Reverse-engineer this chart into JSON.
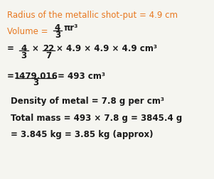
{
  "bg_color": "#f5f5f0",
  "text_color_gray": "#555555",
  "text_color_orange": "#e87820",
  "text_color_black": "#1a1a1a",
  "line1": "Radius of the metallic shot-put = 4.9 cm",
  "line2a": "Volume = ",
  "line2b": "4",
  "line2c": "3",
  "line2d": "πr³",
  "line3": "=   4  ×  22  × 4.9 × 4.9 × 4.9 cm³",
  "line3_frac1_num": "4",
  "line3_frac1_den": "3",
  "line3_frac2_num": "22",
  "line3_frac2_den": "7",
  "line3_rest": "× 4.9 × 4.9 × 4.9 cm³",
  "line4_num": "1479.016",
  "line4_den": "3",
  "line4_rest": "= 493 cm³",
  "line5": "Density of metal = 7.8 g per cm³",
  "line6": "Total mass = 493 × 7.8 g = 3845.4 g",
  "line7": "= 3.845 kg = 3.85 kg (approx)"
}
